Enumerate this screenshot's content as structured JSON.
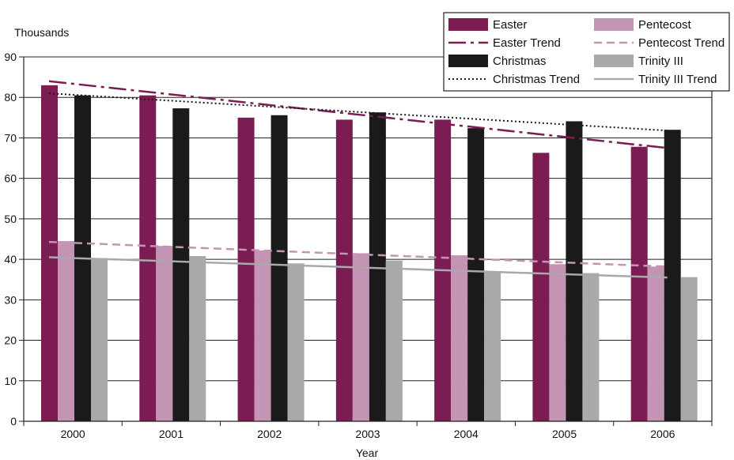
{
  "chart_data": {
    "type": "bar",
    "xlabel": "Year",
    "ylabel": "Thousands",
    "ylim": [
      0,
      90
    ],
    "yticks": [
      0,
      10,
      20,
      30,
      40,
      50,
      60,
      70,
      80,
      90
    ],
    "categories": [
      "2000",
      "2001",
      "2002",
      "2003",
      "2004",
      "2005",
      "2006"
    ],
    "series": [
      {
        "name": "Easter",
        "color": "#7b1d52",
        "values": [
          83,
          80.5,
          75,
          74.5,
          74.5,
          66.3,
          67.8
        ]
      },
      {
        "name": "Pentecost",
        "color": "#c394b3",
        "values": [
          44.5,
          43.3,
          42.2,
          41.5,
          41.0,
          38.8,
          38.2
        ]
      },
      {
        "name": "Christmas",
        "color": "#1a1a1a",
        "values": [
          80.5,
          77.3,
          75.6,
          76.3,
          72.4,
          74.1,
          72.0
        ]
      },
      {
        "name": "Trinity III",
        "color": "#a9a9ab",
        "values": [
          40.3,
          40.8,
          39.0,
          39.7,
          37.1,
          36.6,
          35.6
        ]
      }
    ],
    "trends": [
      {
        "name": "Easter Trend",
        "color": "#7b1d52",
        "style": "dashdot",
        "start": 84.0,
        "end": 67.5
      },
      {
        "name": "Pentecost Trend",
        "color": "#c394b3",
        "style": "dashed",
        "start": 44.3,
        "end": 38.2
      },
      {
        "name": "Christmas Trend",
        "color": "#1a1a1a",
        "style": "dotted",
        "start": 81.0,
        "end": 71.8
      },
      {
        "name": "Trinity III Trend",
        "color": "#a9a9ab",
        "style": "solid",
        "start": 40.5,
        "end": 35.5
      }
    ],
    "legend_position": "top-right",
    "legend_items": [
      "Easter",
      "Pentecost",
      "Easter Trend",
      "Pentecost Trend",
      "Christmas",
      "Trinity III",
      "Christmas Trend",
      "Trinity III Trend"
    ],
    "grid": "horizontal"
  }
}
